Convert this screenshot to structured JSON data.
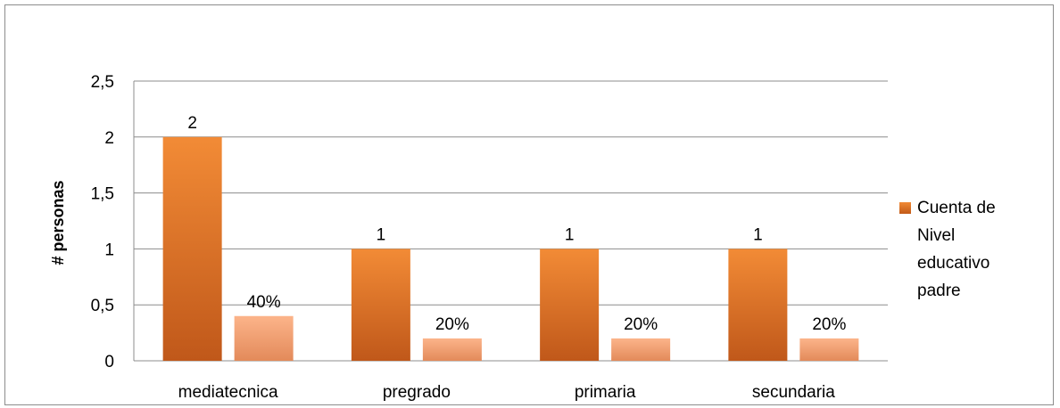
{
  "chart_data": {
    "type": "bar",
    "categories": [
      "mediatecnica",
      "pregrado",
      "primaria",
      "secundaria"
    ],
    "series": [
      {
        "name": "Cuenta de Nivel educativo padre",
        "values": [
          2,
          1,
          1,
          1
        ],
        "labels": [
          "2",
          "1",
          "1",
          "1"
        ],
        "color": "#e8762a"
      },
      {
        "values": [
          0.4,
          0.2,
          0.2,
          0.2
        ],
        "labels": [
          "40%",
          "20%",
          "20%",
          "20%"
        ],
        "color": "#f9a97a"
      }
    ],
    "title": "",
    "xlabel": "",
    "ylabel": "# personas",
    "ylim": [
      0,
      2.5
    ],
    "yticks": [
      0,
      0.5,
      1,
      1.5,
      2,
      2.5
    ],
    "ytick_labels": [
      "0",
      "0,5",
      "1",
      "1,5",
      "2",
      "2,5"
    ],
    "grid": true,
    "legend_position": "right"
  },
  "legend": {
    "label": "Cuenta de Nivel educativo padre",
    "lines": [
      "Cuenta de",
      "Nivel",
      "educativo",
      "padre"
    ]
  }
}
